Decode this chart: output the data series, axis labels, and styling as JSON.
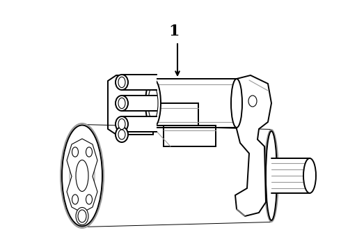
{
  "background_color": "#ffffff",
  "line_color": "#000000",
  "gray_color": "#999999",
  "line_width": 1.4,
  "thin_lw": 0.8,
  "label_text": "1",
  "fig_width": 4.9,
  "fig_height": 3.6,
  "dpi": 100
}
